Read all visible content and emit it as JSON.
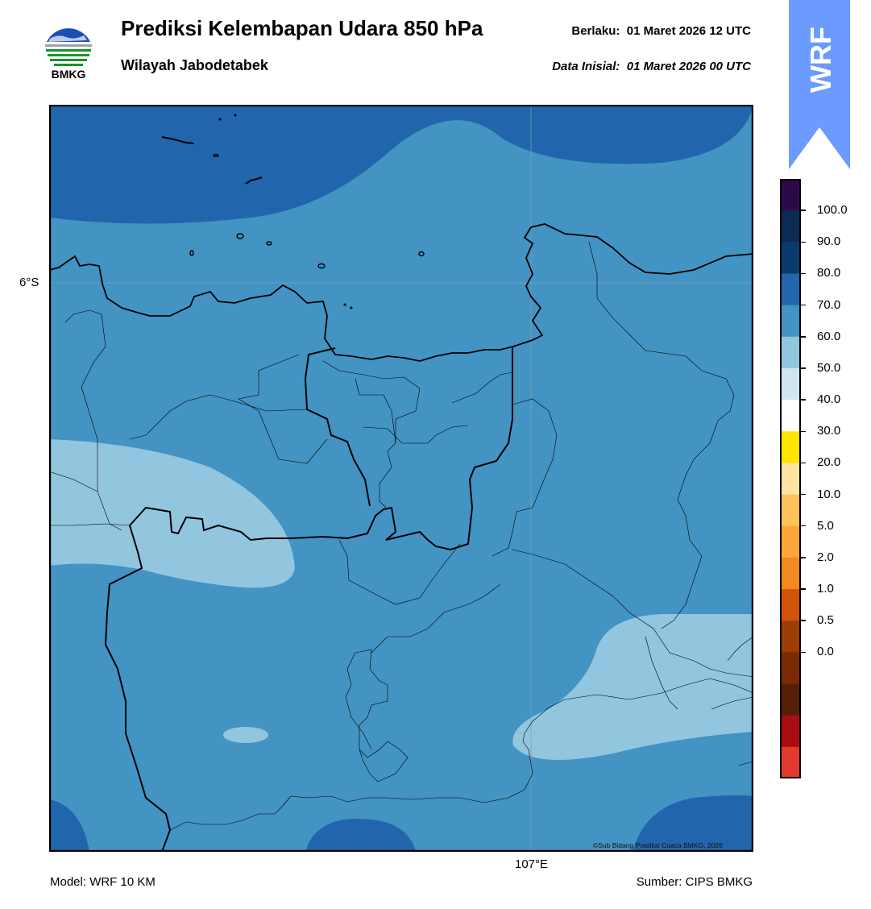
{
  "header": {
    "logo_text": "BMKG",
    "title": "Prediksi Kelembapan Udara 850 hPa",
    "subtitle": "Wilayah Jabodetabek",
    "valid_label": "Berlaku:",
    "valid_value": "01 Maret 2026 12 UTC",
    "init_label": "Data Inisial:",
    "init_value": "01 Maret 2026 00 UTC"
  },
  "banner": {
    "text": "WRF",
    "color": "#6b9bff"
  },
  "map": {
    "lat_label": "6°S",
    "lon_label": "107°E",
    "credit": "©Sub Bidang Prediksi Cuaca BMKG, 2026"
  },
  "footer": {
    "model": "Model: WRF 10 KM",
    "source": "Sumber: CIPS BMKG"
  },
  "colorbar": {
    "labels": [
      "100.0",
      "90.0",
      "80.0",
      "70.0",
      "60.0",
      "50.0",
      "40.0",
      "30.0",
      "20.0",
      "10.0",
      "5.0",
      "2.0",
      "1.0",
      "0.5",
      "0.0"
    ],
    "colors": [
      "#2c0a4a",
      "#0d2a52",
      "#0b3a6e",
      "#2166ac",
      "#4393c3",
      "#92c5de",
      "#d1e5f0",
      "#ffffff",
      "#ffe400",
      "#ffe3a0",
      "#ffc35c",
      "#ffa63a",
      "#f38a1f",
      "#d2530a",
      "#9e3d06",
      "#7a2a05",
      "#562008",
      "#a80d12",
      "#e23a2e"
    ]
  },
  "legend_fill_colors": {
    "70_80": "#4393c3",
    "80_90": "#2166ac",
    "60_70": "#92c5de"
  }
}
